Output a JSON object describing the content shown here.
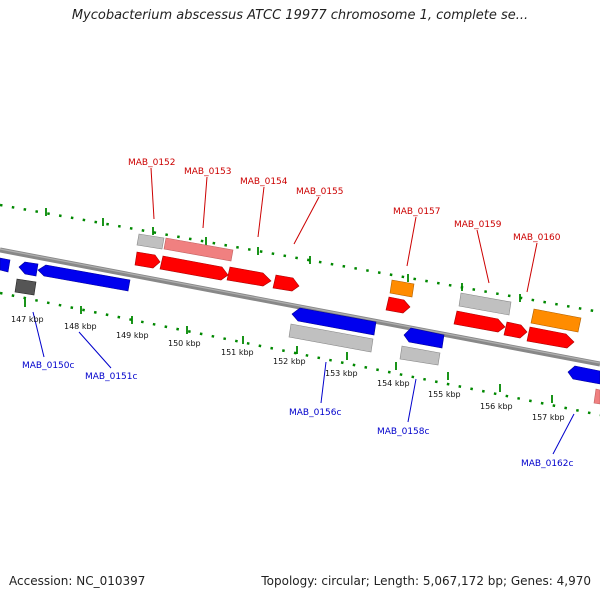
{
  "title": "Mycobacterium abscessus ATCC 19977 chromosome 1, complete se...",
  "footer": {
    "accession": "Accession: NC_010397",
    "summary": "Topology: circular; Length: 5,067,172 bp; Genes: 4,970"
  },
  "colors": {
    "forward_cds": "#ff0000",
    "forward_pale": "#f08080",
    "reverse_cds": "#0000ee",
    "pseudo_gray": "#c0c0c0",
    "dark_gray": "#555555",
    "orange": "#ff8c00",
    "axis_tick": "#008800",
    "forward_label": "#cc0000",
    "reverse_label": "#0000cc"
  },
  "scale_labels": [
    "147 kbp",
    "148 kbp",
    "149 kbp",
    "150 kbp",
    "151 kbp",
    "152 kbp",
    "153 kbp",
    "154 kbp",
    "155 kbp",
    "156 kbp",
    "157 kbp"
  ],
  "forward_labels": [
    "MAB_0152",
    "MAB_0153",
    "MAB_0154",
    "MAB_0155",
    "MAB_0157",
    "MAB_0159",
    "MAB_0160"
  ],
  "reverse_labels": [
    "MAB_0150c",
    "MAB_0151c",
    "MAB_0156c",
    "MAB_0158c",
    "MAB_0162c"
  ]
}
